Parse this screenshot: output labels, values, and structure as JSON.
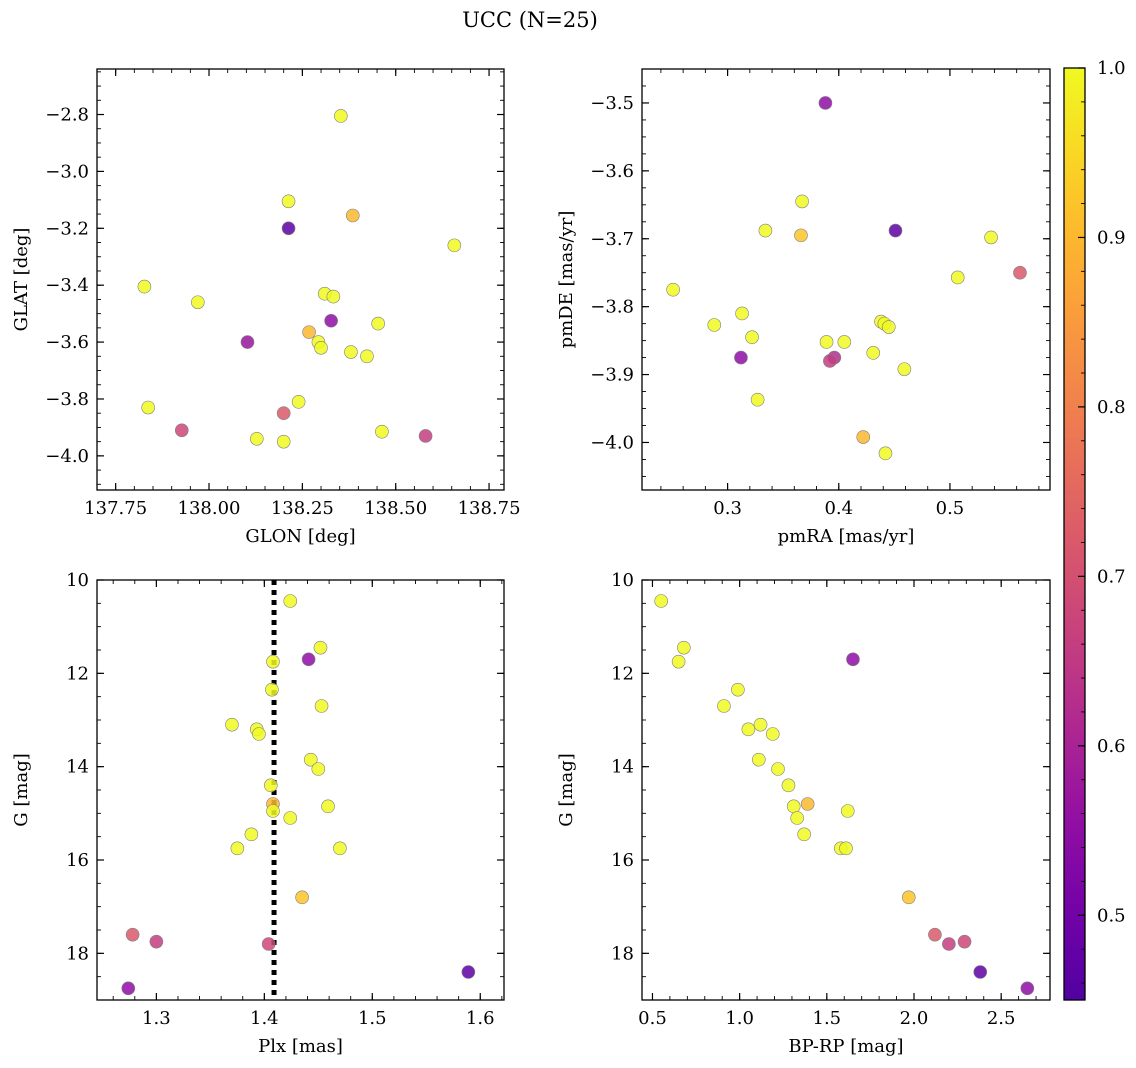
{
  "chart_data": {
    "type": "scatter",
    "title": "UCC (N=25)",
    "colorbar": {
      "colormap": "plasma",
      "range": [
        0.45,
        1.0
      ],
      "ticks": [
        0.5,
        0.6,
        0.7,
        0.8,
        0.9,
        1.0
      ],
      "tick_labels": [
        "0.5",
        "0.6",
        "0.7",
        "0.8",
        "0.9",
        "1.0"
      ]
    },
    "marker": {
      "edgecolor": "#808080",
      "opacity": 0.85
    },
    "panels": [
      {
        "id": "glon-glat",
        "xlabel": "GLON [deg]",
        "ylabel": "GLAT [deg]",
        "xlim": [
          137.7,
          138.79
        ],
        "ylim": [
          -4.12,
          -2.64
        ],
        "xticks": [
          137.75,
          138.0,
          138.25,
          138.5,
          138.75
        ],
        "xtick_labels": [
          "137.75",
          "138.00",
          "138.25",
          "138.50",
          "138.75"
        ],
        "yticks": [
          -2.8,
          -3.0,
          -3.2,
          -3.4,
          -3.6,
          -3.8,
          -4.0
        ],
        "ytick_labels": [
          "−2.8",
          "−3.0",
          "−3.2",
          "−3.4",
          "−3.6",
          "−3.8",
          "−4.0"
        ],
        "x": [
          138.353,
          138.213,
          138.213,
          138.385,
          138.657,
          137.827,
          137.97,
          138.31,
          138.333,
          138.327,
          138.103,
          138.453,
          138.268,
          138.293,
          138.3,
          138.38,
          138.423,
          137.837,
          138.24,
          138.2,
          137.927,
          138.128,
          138.2,
          138.463,
          138.58
        ],
        "y": [
          -2.805,
          -3.105,
          -3.2,
          -3.155,
          -3.26,
          -3.405,
          -3.46,
          -3.43,
          -3.44,
          -3.525,
          -3.6,
          -3.535,
          -3.565,
          -3.6,
          -3.62,
          -3.635,
          -3.65,
          -3.83,
          -3.81,
          -3.85,
          -3.91,
          -3.94,
          -3.95,
          -3.915,
          -3.93
        ]
      },
      {
        "id": "pm",
        "xlabel": "pmRA [mas/yr]",
        "ylabel": "pmDE [mas/yr]",
        "xlim": [
          0.223,
          0.59
        ],
        "ylim": [
          -4.07,
          -3.45
        ],
        "xticks": [
          0.3,
          0.4,
          0.5
        ],
        "xtick_labels": [
          "0.3",
          "0.4",
          "0.5"
        ],
        "yticks": [
          -3.5,
          -3.6,
          -3.7,
          -3.8,
          -3.9,
          -4.0
        ],
        "ytick_labels": [
          "−3.5",
          "−3.6",
          "−3.7",
          "−3.8",
          "−3.9",
          "−4.0"
        ],
        "x": [
          0.388,
          0.367,
          0.334,
          0.366,
          0.451,
          0.537,
          0.507,
          0.251,
          0.563,
          0.313,
          0.288,
          0.322,
          0.438,
          0.441,
          0.445,
          0.389,
          0.405,
          0.396,
          0.431,
          0.392,
          0.312,
          0.459,
          0.327,
          0.422,
          0.442
        ],
        "y": [
          -3.5,
          -3.645,
          -3.688,
          -3.695,
          -3.688,
          -3.698,
          -3.757,
          -3.775,
          -3.75,
          -3.81,
          -3.827,
          -3.845,
          -3.822,
          -3.825,
          -3.83,
          -3.852,
          -3.852,
          -3.875,
          -3.868,
          -3.88,
          -3.875,
          -3.892,
          -3.937,
          -3.992,
          -4.016
        ]
      },
      {
        "id": "plx-g",
        "xlabel": "Plx [mas]",
        "ylabel": "G [mag]",
        "xlim": [
          1.245,
          1.622
        ],
        "ylim": [
          19.0,
          10.0
        ],
        "ylim_note": "inverted",
        "xticks": [
          1.3,
          1.4,
          1.5,
          1.6
        ],
        "xtick_labels": [
          "1.3",
          "1.4",
          "1.5",
          "1.6"
        ],
        "yticks": [
          10,
          12,
          14,
          16,
          18
        ],
        "ytick_labels": [
          "10",
          "12",
          "14",
          "16",
          "18"
        ],
        "vline": 1.409,
        "x": [
          1.424,
          1.452,
          1.408,
          1.441,
          1.407,
          1.453,
          1.37,
          1.393,
          1.395,
          1.443,
          1.45,
          1.406,
          1.408,
          1.459,
          1.408,
          1.424,
          1.388,
          1.375,
          1.47,
          1.435,
          1.278,
          1.3,
          1.404,
          1.589,
          1.274
        ],
        "y": [
          10.45,
          11.45,
          11.75,
          11.7,
          12.35,
          12.7,
          13.1,
          13.2,
          13.3,
          13.85,
          14.05,
          14.4,
          14.8,
          14.85,
          14.95,
          15.1,
          15.45,
          15.75,
          15.75,
          16.8,
          17.6,
          17.75,
          17.8,
          18.4,
          18.75
        ]
      },
      {
        "id": "bprp-g",
        "xlabel": "BP-RP [mag]",
        "ylabel": "G [mag]",
        "xlim": [
          0.44,
          2.78
        ],
        "ylim": [
          19.0,
          10.0
        ],
        "ylim_note": "inverted",
        "xticks": [
          0.5,
          1.0,
          1.5,
          2.0,
          2.5
        ],
        "xtick_labels": [
          "0.5",
          "1.0",
          "1.5",
          "2.0",
          "2.5"
        ],
        "yticks": [
          10,
          12,
          14,
          16,
          18
        ],
        "ytick_labels": [
          "10",
          "12",
          "14",
          "16",
          "18"
        ],
        "x": [
          0.55,
          0.68,
          0.65,
          1.65,
          0.99,
          0.91,
          1.12,
          1.05,
          1.19,
          1.11,
          1.22,
          1.28,
          1.39,
          1.31,
          1.62,
          1.33,
          1.37,
          1.58,
          1.61,
          1.97,
          2.12,
          2.2,
          2.29,
          2.38,
          2.65
        ],
        "y": [
          10.45,
          11.45,
          11.75,
          11.7,
          12.35,
          12.7,
          13.1,
          13.2,
          13.3,
          13.85,
          14.05,
          14.4,
          14.8,
          14.85,
          14.95,
          15.1,
          15.45,
          15.75,
          15.75,
          16.8,
          17.6,
          17.8,
          17.75,
          18.4,
          18.75
        ]
      }
    ],
    "probabilities": {
      "glon-glat": [
        1.0,
        1.0,
        0.47,
        0.9,
        1.0,
        1.0,
        1.0,
        1.0,
        1.0,
        0.55,
        0.57,
        1.0,
        0.9,
        1.0,
        1.0,
        1.0,
        1.0,
        1.0,
        1.0,
        0.72,
        0.68,
        1.0,
        1.0,
        1.0,
        0.66
      ],
      "pm": [
        0.55,
        1.0,
        1.0,
        0.92,
        0.47,
        1.0,
        1.0,
        1.0,
        0.72,
        1.0,
        1.0,
        1.0,
        1.0,
        1.0,
        1.0,
        1.0,
        1.0,
        0.62,
        1.0,
        0.66,
        0.55,
        1.0,
        1.0,
        0.9,
        1.0
      ],
      "plx-g": [
        1.0,
        1.0,
        1.0,
        0.55,
        1.0,
        1.0,
        1.0,
        1.0,
        1.0,
        1.0,
        1.0,
        1.0,
        0.9,
        1.0,
        1.0,
        1.0,
        1.0,
        1.0,
        1.0,
        0.92,
        0.72,
        0.66,
        0.68,
        0.47,
        0.55
      ],
      "bprp-g": [
        1.0,
        1.0,
        1.0,
        0.55,
        1.0,
        1.0,
        1.0,
        1.0,
        1.0,
        1.0,
        1.0,
        1.0,
        0.9,
        1.0,
        1.0,
        1.0,
        1.0,
        1.0,
        1.0,
        0.92,
        0.72,
        0.66,
        0.68,
        0.47,
        0.55
      ]
    }
  }
}
